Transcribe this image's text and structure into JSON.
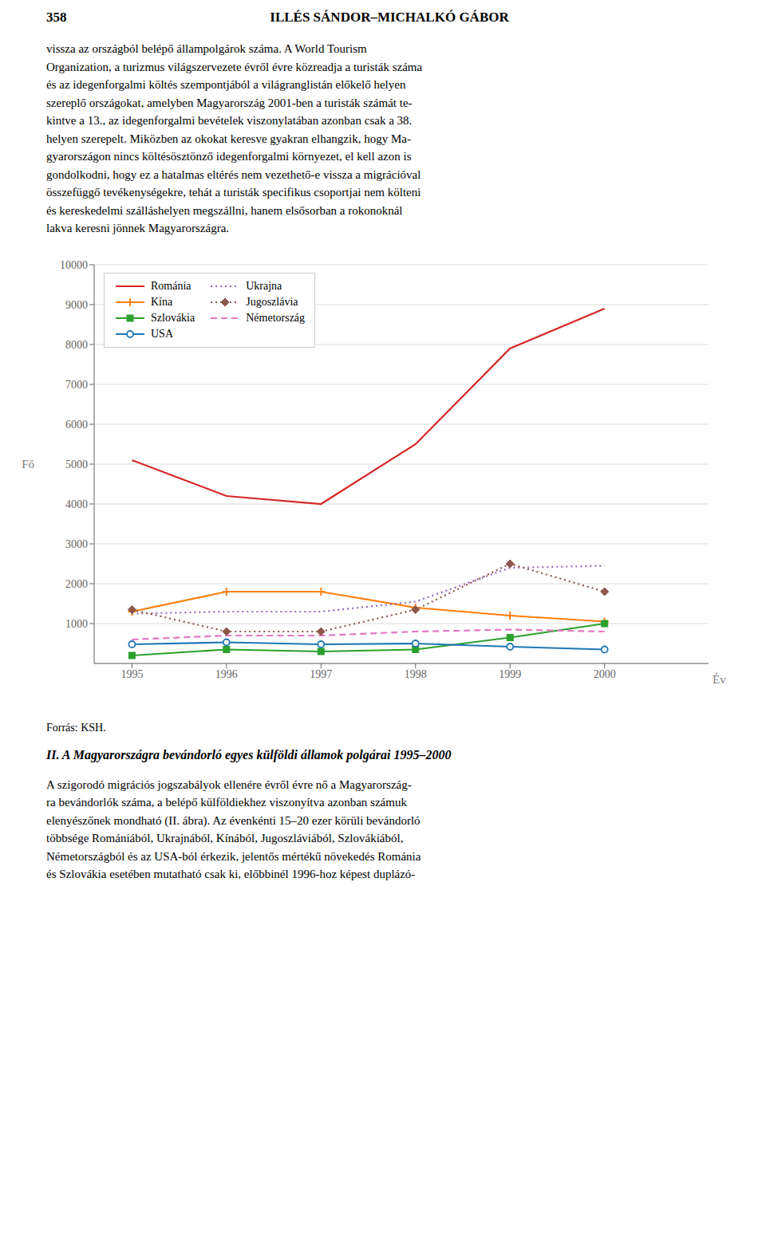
{
  "chart_data": {
    "type": "line",
    "title": "II. A Magyarországra bevándorló egyes külföldi államok polgárai 1995–2000",
    "x_label": "Év",
    "y_label": "Fő",
    "x": [
      1995,
      1996,
      1997,
      1998,
      1999,
      2000
    ],
    "xlim": [
      1994.6,
      2001.1
    ],
    "xticks": [
      1995,
      1996,
      1997,
      1998,
      1999,
      2000
    ],
    "ylim": [
      0,
      10000
    ],
    "yticks": [
      1000,
      2000,
      3000,
      4000,
      5000,
      6000,
      7000,
      8000,
      9000,
      10000
    ],
    "grid": true,
    "legend": "upper left",
    "series": [
      {
        "name": "Románia",
        "color": "#d62728",
        "marker": "none",
        "line_style": "solid",
        "values": [
          5100,
          4200,
          4000,
          5500,
          7900,
          8900
        ]
      },
      {
        "name": "Kína",
        "color": "#ff7f0e",
        "marker": "plus",
        "line_style": "solid",
        "values": [
          1300,
          1800,
          1800,
          1400,
          1200,
          1050
        ]
      },
      {
        "name": "Szlovákia",
        "color": "#2ca02c",
        "marker": "square",
        "line_style": "solid",
        "values": [
          200,
          350,
          300,
          350,
          650,
          1000
        ]
      },
      {
        "name": "USA",
        "color": "#1f77b4",
        "marker": "circle",
        "line_style": "solid",
        "values": [
          480,
          530,
          480,
          500,
          420,
          350
        ]
      },
      {
        "name": "Ukrajna",
        "color": "#9467bd",
        "marker": "none",
        "line_style": "dotted",
        "values": [
          1250,
          1300,
          1300,
          1550,
          2400,
          2450
        ]
      },
      {
        "name": "Jugoszlávia",
        "color": "#8c564b",
        "marker": "diamond",
        "line_style": "dotted",
        "values": [
          1350,
          800,
          800,
          1350,
          2500,
          1800
        ]
      },
      {
        "name": "Németország",
        "color": "#e377c2",
        "marker": "none",
        "line_style": "dashed",
        "values": [
          600,
          700,
          700,
          800,
          850,
          800
        ]
      }
    ],
    "annotations": [
      "358",
      "ILLÉS SÁNDOR–MICHALKÓ GÁBOR",
      "vissza az országból belépő állampolgárok száma. A World Tourism\nOrganization, a turizmus világszervezete évről évre közreadja a turisták száma\nés az idegenforgalmi költés szempontjából a világranglistán előkelő helyen\nszereplő országokat, amelyben Magyarország 2001-ben a turisták számát te-\nkintve a 13., az idegenforgalmi bevételek viszonylatában azonban csak a 38.\nhelyen szerepelt. Miközben az okokat keresve gyakran elhangzik, hogy Ma-\ngyarországon nincs költésösztönző idegenforgalmi környezet, el kell azon is\ngondolkodni, hogy ez a hatalmas eltérés nem vezethető-e vissza a migrációval\nösszefüggő tevékenységekre, tehát a turisták specifikus csoportjai nem költeni\nés kereskedelmi szálláshelyen megszállni, hanem elsősorban a rokonoknál\nlakva keresni jönnek Magyarországra.",
      "Forrás: KSH.",
      "A szigorodó migrációs jogszabályok ellenére évről évre nő a Magyarország-\nra bevándorlók száma, a belépő külföldiekhez viszonyítva azonban számuk\nelenyészőnek mondható (II. ábra). Az évenkénti 15–20 ezer körüli bevándorló\ntöbbsége Romániából, Ukrajnából, Kínából, Jugoszláviából, Szlovákiából,\nNémetországból és az USA-ból érkezik, jelentős mértékű növekedés Románia\nés Szlovákia esetében mutatható csak ki, előbbinél 1996-hoz képest duplázó-"
    ]
  }
}
